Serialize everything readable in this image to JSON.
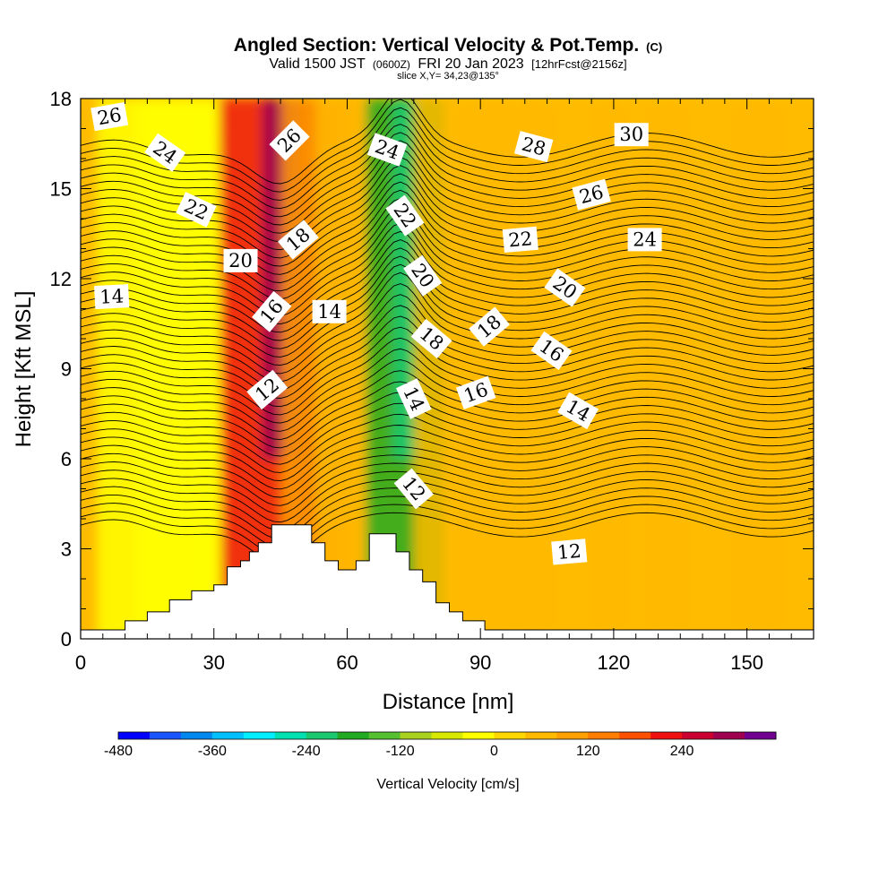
{
  "chart_data": {
    "type": "heatmap",
    "title": "Angled Section: Vertical Velocity & Pot.Temp.",
    "title_mark": "(C)",
    "subtitle_parts": [
      "Valid 1500 JST",
      "(0600Z)",
      "FRI 20 Jan 2023",
      "[12hrFcst@2156z]"
    ],
    "slice_info": "slice X,Y= 34,23@135°",
    "xlabel": "Distance [nm]",
    "ylabel": "Height [Kft MSL]",
    "xlim": [
      0,
      165
    ],
    "ylim": [
      0,
      18
    ],
    "x_ticks": [
      0,
      30,
      60,
      90,
      120,
      150
    ],
    "y_ticks": [
      0,
      3,
      6,
      9,
      12,
      15,
      18
    ],
    "colorbar": {
      "label": "Vertical Velocity [cm/s]",
      "min": -480,
      "step": 40,
      "tick_values": [
        -480,
        -360,
        -240,
        -120,
        0,
        120,
        240
      ],
      "colors": [
        "#0000ff",
        "#1a55ff",
        "#0088ee",
        "#00c0ff",
        "#00eeff",
        "#00e0b0",
        "#1ac86e",
        "#22aa22",
        "#55c030",
        "#aad020",
        "#d8e800",
        "#ffff00",
        "#ffd700",
        "#ffba00",
        "#ffa000",
        "#ff7d00",
        "#ff5000",
        "#ee1010",
        "#cc0030",
        "#a00050",
        "#700090"
      ]
    },
    "vertical_velocity_bands": [
      {
        "x": 3,
        "w": 10,
        "v": 60
      },
      {
        "x": 17,
        "w": 6,
        "v": -40
      },
      {
        "x": 30,
        "w": 8,
        "v": -30
      },
      {
        "x": 45,
        "w": 6,
        "v": 220
      },
      {
        "x": 54,
        "w": 4,
        "v": 80
      },
      {
        "x": 64,
        "w": 5,
        "v": 60
      },
      {
        "x": 73,
        "w": 4,
        "v": -200
      },
      {
        "x": 86,
        "w": 5,
        "v": 40
      },
      {
        "x": 96,
        "w": 4,
        "v": 60
      },
      {
        "x": 110,
        "w": 5,
        "v": 50
      },
      {
        "x": 126,
        "w": 4,
        "v": 60
      },
      {
        "x": 143,
        "w": 6,
        "v": 50
      },
      {
        "x": 158,
        "w": 4,
        "v": 50
      }
    ],
    "terrain_profile": [
      [
        0,
        0.3
      ],
      [
        10,
        0.3
      ],
      [
        10,
        0.6
      ],
      [
        15,
        0.6
      ],
      [
        15,
        0.9
      ],
      [
        20,
        0.9
      ],
      [
        20,
        1.3
      ],
      [
        25,
        1.3
      ],
      [
        25,
        1.6
      ],
      [
        30,
        1.6
      ],
      [
        30,
        1.8
      ],
      [
        33,
        1.8
      ],
      [
        33,
        2.4
      ],
      [
        36,
        2.4
      ],
      [
        36,
        2.6
      ],
      [
        38,
        2.6
      ],
      [
        38,
        2.9
      ],
      [
        40,
        2.9
      ],
      [
        40,
        3.2
      ],
      [
        43,
        3.2
      ],
      [
        43,
        3.8
      ],
      [
        52,
        3.8
      ],
      [
        52,
        3.2
      ],
      [
        55,
        3.2
      ],
      [
        55,
        2.6
      ],
      [
        58,
        2.6
      ],
      [
        58,
        2.3
      ],
      [
        62,
        2.3
      ],
      [
        62,
        2.6
      ],
      [
        65,
        2.6
      ],
      [
        65,
        3.5
      ],
      [
        71,
        3.5
      ],
      [
        71,
        2.9
      ],
      [
        74,
        2.9
      ],
      [
        74,
        2.3
      ],
      [
        77,
        2.3
      ],
      [
        77,
        1.9
      ],
      [
        80,
        1.9
      ],
      [
        80,
        1.2
      ],
      [
        83,
        1.2
      ],
      [
        83,
        0.9
      ],
      [
        86,
        0.9
      ],
      [
        86,
        0.6
      ],
      [
        91,
        0.6
      ],
      [
        91,
        0.3
      ],
      [
        165,
        0.3
      ]
    ],
    "theta_levels": [
      8,
      8.5,
      9,
      9.5,
      10,
      10.5,
      11,
      11.5,
      12,
      12.5,
      13,
      13.5,
      14,
      14.5,
      15,
      15.5,
      16,
      16.5,
      17,
      17.5,
      18,
      18.5,
      19,
      19.5,
      20,
      20.5,
      21,
      21.5,
      22,
      22.5,
      23,
      23.5,
      24,
      24.5,
      25,
      25.5,
      26,
      26.5,
      27,
      27.5,
      28,
      28.5,
      29,
      29.5,
      30,
      30.5,
      31
    ],
    "contour_labels": [
      {
        "text": "26",
        "x": 6.5,
        "y": 17.4,
        "angle": -10
      },
      {
        "text": "24",
        "x": 19,
        "y": 16.2,
        "angle": 35
      },
      {
        "text": "22",
        "x": 26,
        "y": 14.3,
        "angle": 25
      },
      {
        "text": "20",
        "x": 36,
        "y": 12.6,
        "angle": 0
      },
      {
        "text": "14",
        "x": 7,
        "y": 11.4,
        "angle": -3
      },
      {
        "text": "26",
        "x": 47,
        "y": 16.6,
        "angle": -45
      },
      {
        "text": "18",
        "x": 49,
        "y": 13.3,
        "angle": -40
      },
      {
        "text": "16",
        "x": 43,
        "y": 10.9,
        "angle": -50
      },
      {
        "text": "14",
        "x": 56,
        "y": 10.9,
        "angle": 0
      },
      {
        "text": "12",
        "x": 42,
        "y": 8.3,
        "angle": -40
      },
      {
        "text": "24",
        "x": 69,
        "y": 16.3,
        "angle": 20
      },
      {
        "text": "22",
        "x": 73,
        "y": 14.1,
        "angle": 55
      },
      {
        "text": "20",
        "x": 77,
        "y": 12.1,
        "angle": 55
      },
      {
        "text": "18",
        "x": 79,
        "y": 10,
        "angle": 40
      },
      {
        "text": "14",
        "x": 75,
        "y": 8,
        "angle": 65
      },
      {
        "text": "12",
        "x": 75,
        "y": 5,
        "angle": 50
      },
      {
        "text": "18",
        "x": 92,
        "y": 10.4,
        "angle": -40
      },
      {
        "text": "16",
        "x": 89,
        "y": 8.2,
        "angle": -20
      },
      {
        "text": "28",
        "x": 102,
        "y": 16.4,
        "angle": 15
      },
      {
        "text": "22",
        "x": 99,
        "y": 13.3,
        "angle": -5
      },
      {
        "text": "20",
        "x": 109,
        "y": 11.7,
        "angle": 35
      },
      {
        "text": "16",
        "x": 106,
        "y": 9.6,
        "angle": 35
      },
      {
        "text": "14",
        "x": 112,
        "y": 7.6,
        "angle": 30
      },
      {
        "text": "12",
        "x": 110,
        "y": 2.9,
        "angle": -5
      },
      {
        "text": "30",
        "x": 124,
        "y": 16.8,
        "angle": 0
      },
      {
        "text": "26",
        "x": 115,
        "y": 14.8,
        "angle": -15
      },
      {
        "text": "24",
        "x": 127,
        "y": 13.3,
        "angle": 0
      }
    ]
  }
}
